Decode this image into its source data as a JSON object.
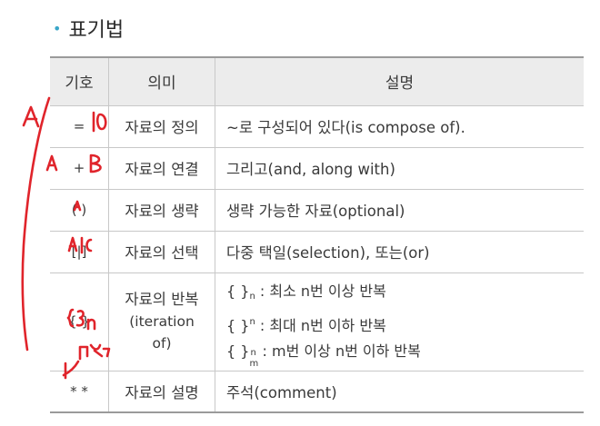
{
  "section": {
    "bullet": "•",
    "title": "표기법"
  },
  "table": {
    "headers": {
      "symbol": "기호",
      "meaning": "의미",
      "description": "설명"
    },
    "rows": [
      {
        "symbol": "=",
        "meaning": "자료의 정의",
        "description": "~로 구성되어 있다(is compose of)."
      },
      {
        "symbol": "+",
        "meaning": "자료의 연결",
        "description": "그리고(and, along with)"
      },
      {
        "symbol": "( )",
        "meaning": "자료의 생략",
        "description": "생략 가능한 자료(optional)"
      },
      {
        "symbol": "[|]",
        "meaning": "자료의 선택",
        "description": "다중 택일(selection), 또는(or)"
      },
      {
        "symbol": "{ }",
        "meaning": "자료의 반복",
        "meaning_sub": "(iteration of)",
        "repeat_lines": [
          {
            "prefix": "{ }",
            "script": "n",
            "text": ": 최소 n번 이상 반복"
          },
          {
            "prefix": "{ }",
            "script": "n",
            "text": ": 최대 n번 이하 반복"
          },
          {
            "prefix": "{ }",
            "script_upper": "n",
            "script_lower": "m",
            "text": ": m번 이상 n번 이하 반복"
          }
        ]
      },
      {
        "symbol": "* *",
        "meaning": "자료의 설명",
        "description": "주석(comment)"
      }
    ]
  },
  "annotations": {
    "ink_color": "#e0242b",
    "handwritten": [
      "A",
      "= 10",
      "A + B",
      "(A)",
      "A|C",
      "{3}n",
      "k번"
    ]
  }
}
